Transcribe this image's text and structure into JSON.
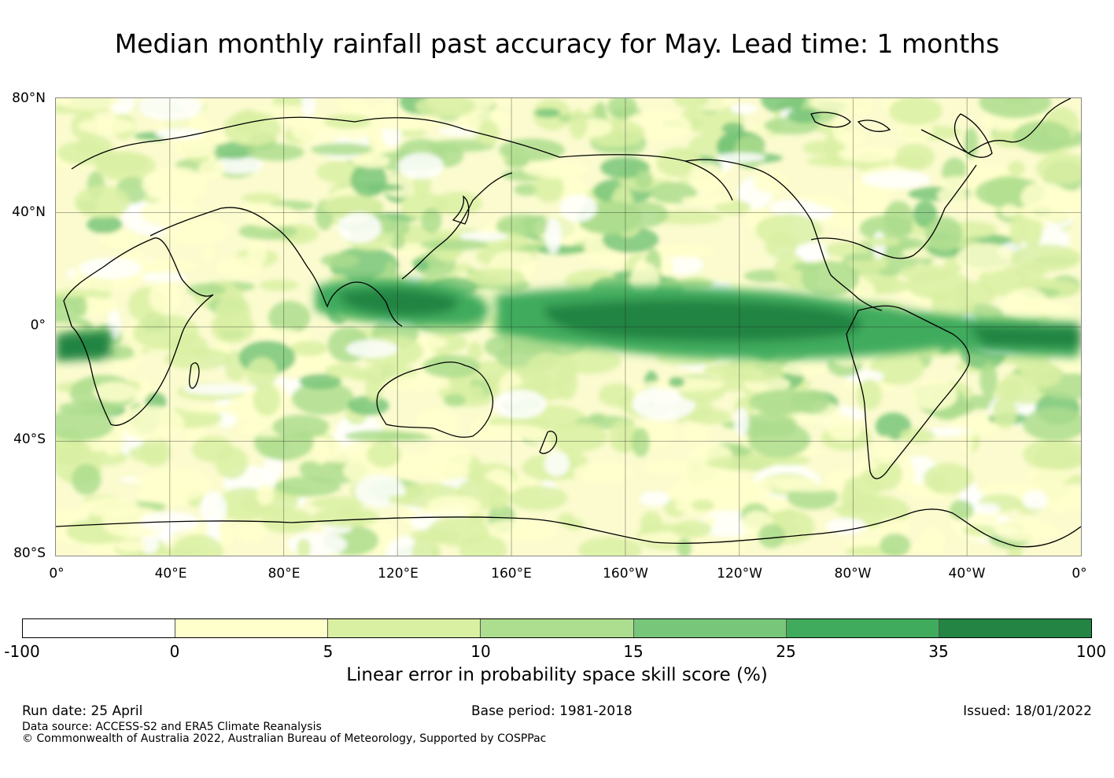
{
  "title": "Median monthly rainfall past accuracy for May. Lead time: 1 months",
  "map": {
    "lat_ticks": [
      "80°N",
      "40°N",
      "0°",
      "40°S",
      "80°S"
    ],
    "lon_ticks": [
      "0°",
      "40°E",
      "80°E",
      "120°E",
      "160°E",
      "160°W",
      "120°W",
      "80°W",
      "40°W",
      "0°"
    ]
  },
  "colorbar": {
    "labels": [
      "-100",
      "0",
      "5",
      "10",
      "15",
      "25",
      "35",
      "100"
    ],
    "colors": [
      "#ffffff",
      "#ffffcc",
      "#d9f0a3",
      "#addd8e",
      "#78c679",
      "#41ab5d",
      "#238443"
    ],
    "title": "Linear error in probability space skill score (%)"
  },
  "footer": {
    "run_date": "Run date: 25 April",
    "base_period": "Base period: 1981-2018",
    "issued": "Issued: 18/01/2022",
    "data_source": "Data source: ACCESS-S2 and ERA5 Climate Reanalysis",
    "copyright": "© Commonwealth of Australia 2022, Australian Bureau of Meteorology, Supported by COSPPac"
  }
}
